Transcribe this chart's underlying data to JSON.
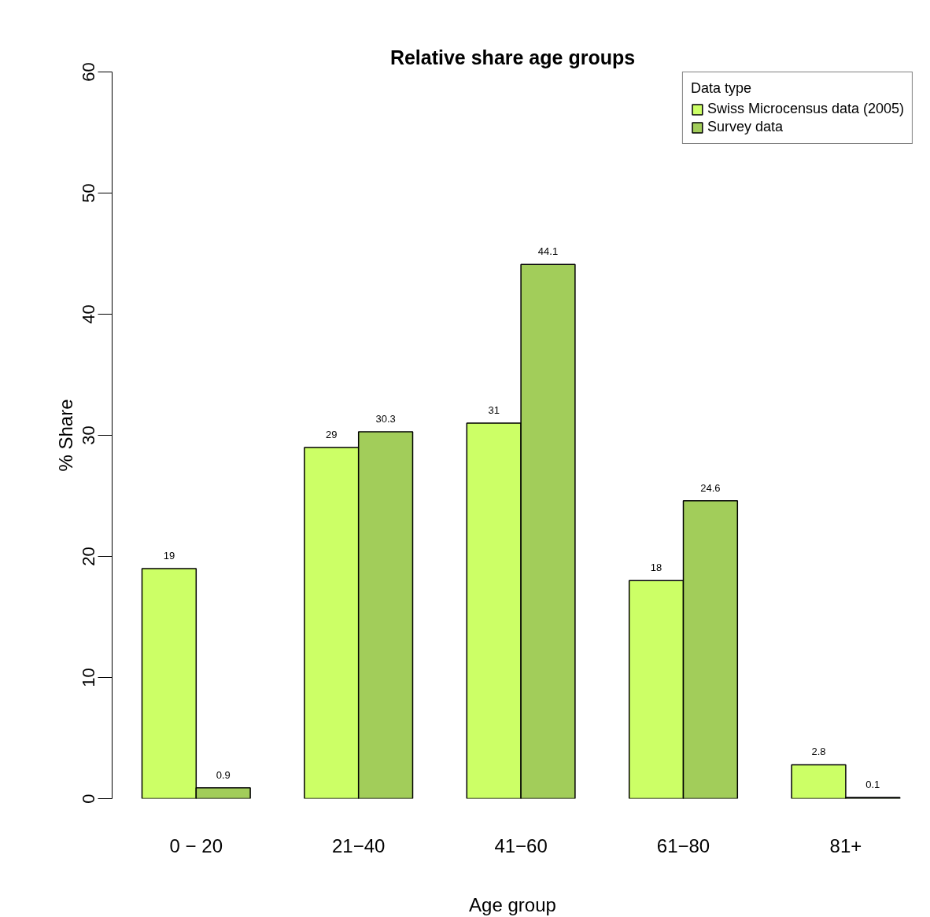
{
  "chart_data": {
    "type": "bar",
    "title": "Relative share age groups",
    "xlabel": "Age group",
    "ylabel": "% Share",
    "legend_title": "Data type",
    "categories": [
      "0 − 20",
      "21−40",
      "41−60",
      "61−80",
      "81+"
    ],
    "series": [
      {
        "name": "Swiss Microcensus data (2005)",
        "color": "#ccff66",
        "values": [
          19,
          29,
          31,
          18,
          2.8
        ]
      },
      {
        "name": "Survey data",
        "color": "#a2cd5a",
        "values": [
          0.9,
          30.3,
          44.1,
          24.6,
          0.1
        ]
      }
    ],
    "ylim": [
      0,
      60
    ],
    "yticks": [
      0,
      10,
      20,
      30,
      40,
      50,
      60
    ],
    "grid": false,
    "legend": "top right",
    "data_labels": true
  }
}
